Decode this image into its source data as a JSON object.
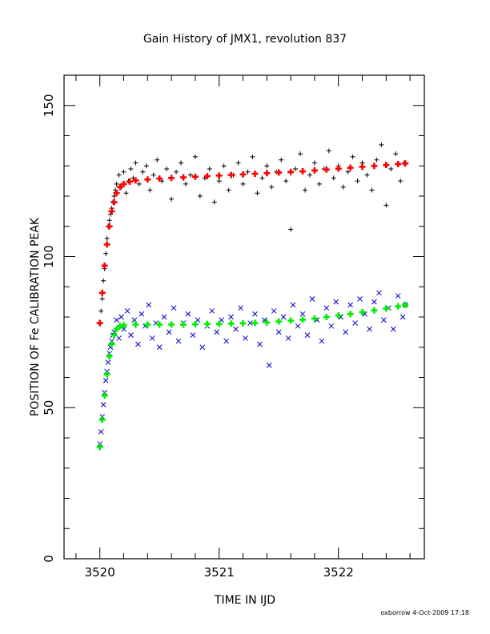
{
  "chart_data": {
    "type": "scatter",
    "title": "Gain History of JMX1, revolution 837",
    "xlabel": "TIME IN IJD",
    "ylabel": "POSITION OF Fe CALIBRATION PEAK",
    "xlim": [
      3519.7,
      3522.72
    ],
    "ylim": [
      0,
      160
    ],
    "x_ticks": [
      3520,
      3521,
      3522
    ],
    "x_tick_labels": [
      "3520",
      "3521",
      "3522"
    ],
    "y_ticks": [
      0,
      50,
      100,
      150
    ],
    "y_tick_labels": [
      "0",
      "50",
      "100",
      "150"
    ],
    "grid": false,
    "series": [
      {
        "marker": "plus",
        "color": "#000000",
        "points": [
          [
            3520.0,
            78
          ],
          [
            3520.01,
            82
          ],
          [
            3520.02,
            86
          ],
          [
            3520.03,
            92
          ],
          [
            3520.04,
            96
          ],
          [
            3520.05,
            101
          ],
          [
            3520.06,
            106
          ],
          [
            3520.07,
            110
          ],
          [
            3520.08,
            112
          ],
          [
            3520.09,
            114
          ],
          [
            3520.1,
            116
          ],
          [
            3520.11,
            118
          ],
          [
            3520.12,
            120
          ],
          [
            3520.13,
            122
          ],
          [
            3520.14,
            124
          ],
          [
            3520.16,
            127
          ],
          [
            3520.18,
            123
          ],
          [
            3520.2,
            128
          ],
          [
            3520.22,
            121
          ],
          [
            3520.24,
            125
          ],
          [
            3520.26,
            129
          ],
          [
            3520.28,
            126
          ],
          [
            3520.3,
            131
          ],
          [
            3520.33,
            124
          ],
          [
            3520.36,
            128
          ],
          [
            3520.39,
            130
          ],
          [
            3520.42,
            122
          ],
          [
            3520.45,
            127
          ],
          [
            3520.48,
            132
          ],
          [
            3520.52,
            125
          ],
          [
            3520.56,
            129
          ],
          [
            3520.6,
            119
          ],
          [
            3520.64,
            128
          ],
          [
            3520.68,
            131
          ],
          [
            3520.72,
            124
          ],
          [
            3520.76,
            127
          ],
          [
            3520.8,
            133
          ],
          [
            3520.84,
            120
          ],
          [
            3520.88,
            126
          ],
          [
            3520.92,
            129
          ],
          [
            3520.96,
            118
          ],
          [
            3521.0,
            125
          ],
          [
            3521.04,
            130
          ],
          [
            3521.08,
            122
          ],
          [
            3521.12,
            127
          ],
          [
            3521.16,
            131
          ],
          [
            3521.2,
            124
          ],
          [
            3521.24,
            128
          ],
          [
            3521.28,
            133
          ],
          [
            3521.32,
            121
          ],
          [
            3521.36,
            126
          ],
          [
            3521.4,
            130
          ],
          [
            3521.44,
            123
          ],
          [
            3521.48,
            128
          ],
          [
            3521.52,
            132
          ],
          [
            3521.56,
            125
          ],
          [
            3521.6,
            109
          ],
          [
            3521.64,
            129
          ],
          [
            3521.68,
            134
          ],
          [
            3521.72,
            122
          ],
          [
            3521.76,
            127
          ],
          [
            3521.8,
            131
          ],
          [
            3521.84,
            124
          ],
          [
            3521.88,
            129
          ],
          [
            3521.92,
            135
          ],
          [
            3521.96,
            126
          ],
          [
            3522.0,
            130
          ],
          [
            3522.04,
            123
          ],
          [
            3522.08,
            128
          ],
          [
            3522.12,
            133
          ],
          [
            3522.16,
            125
          ],
          [
            3522.2,
            131
          ],
          [
            3522.24,
            127
          ],
          [
            3522.28,
            122
          ],
          [
            3522.32,
            132
          ],
          [
            3522.36,
            137
          ],
          [
            3522.4,
            117
          ],
          [
            3522.44,
            129
          ],
          [
            3522.48,
            134
          ],
          [
            3522.52,
            125
          ],
          [
            3522.55,
            131
          ]
        ]
      },
      {
        "marker": "cross",
        "color": "#0000cc",
        "points": [
          [
            3520.0,
            38
          ],
          [
            3520.01,
            42
          ],
          [
            3520.02,
            47
          ],
          [
            3520.03,
            51
          ],
          [
            3520.04,
            55
          ],
          [
            3520.05,
            59
          ],
          [
            3520.06,
            62
          ],
          [
            3520.07,
            65
          ],
          [
            3520.08,
            68
          ],
          [
            3520.09,
            70
          ],
          [
            3520.1,
            72
          ],
          [
            3520.11,
            74
          ],
          [
            3520.12,
            75
          ],
          [
            3520.14,
            79
          ],
          [
            3520.16,
            73
          ],
          [
            3520.18,
            80
          ],
          [
            3520.2,
            76
          ],
          [
            3520.23,
            82
          ],
          [
            3520.26,
            74
          ],
          [
            3520.29,
            79
          ],
          [
            3520.32,
            71
          ],
          [
            3520.35,
            81
          ],
          [
            3520.38,
            77
          ],
          [
            3520.41,
            84
          ],
          [
            3520.44,
            73
          ],
          [
            3520.47,
            78
          ],
          [
            3520.5,
            70
          ],
          [
            3520.54,
            80
          ],
          [
            3520.58,
            75
          ],
          [
            3520.62,
            83
          ],
          [
            3520.66,
            72
          ],
          [
            3520.7,
            78
          ],
          [
            3520.74,
            81
          ],
          [
            3520.78,
            74
          ],
          [
            3520.82,
            79
          ],
          [
            3520.86,
            70
          ],
          [
            3520.9,
            77
          ],
          [
            3520.94,
            82
          ],
          [
            3520.98,
            75
          ],
          [
            3521.02,
            79
          ],
          [
            3521.06,
            72
          ],
          [
            3521.1,
            80
          ],
          [
            3521.14,
            76
          ],
          [
            3521.18,
            83
          ],
          [
            3521.22,
            73
          ],
          [
            3521.26,
            78
          ],
          [
            3521.3,
            81
          ],
          [
            3521.34,
            71
          ],
          [
            3521.38,
            79
          ],
          [
            3521.42,
            64
          ],
          [
            3521.46,
            82
          ],
          [
            3521.5,
            75
          ],
          [
            3521.54,
            80
          ],
          [
            3521.58,
            73
          ],
          [
            3521.62,
            84
          ],
          [
            3521.66,
            77
          ],
          [
            3521.7,
            81
          ],
          [
            3521.74,
            74
          ],
          [
            3521.78,
            86
          ],
          [
            3521.82,
            79
          ],
          [
            3521.86,
            72
          ],
          [
            3521.9,
            83
          ],
          [
            3521.94,
            77
          ],
          [
            3521.98,
            85
          ],
          [
            3522.02,
            80
          ],
          [
            3522.06,
            75
          ],
          [
            3522.1,
            84
          ],
          [
            3522.14,
            78
          ],
          [
            3522.18,
            86
          ],
          [
            3522.22,
            81
          ],
          [
            3522.26,
            76
          ],
          [
            3522.3,
            85
          ],
          [
            3522.34,
            88
          ],
          [
            3522.38,
            79
          ],
          [
            3522.42,
            83
          ],
          [
            3522.46,
            76
          ],
          [
            3522.5,
            87
          ],
          [
            3522.54,
            80
          ],
          [
            3522.56,
            84
          ]
        ]
      },
      {
        "marker": "plus",
        "color": "#ff0000",
        "points": [
          [
            3520.0,
            78
          ],
          [
            3520.02,
            88
          ],
          [
            3520.04,
            97
          ],
          [
            3520.06,
            104
          ],
          [
            3520.08,
            110
          ],
          [
            3520.1,
            115
          ],
          [
            3520.12,
            118
          ],
          [
            3520.14,
            121
          ],
          [
            3520.17,
            123
          ],
          [
            3520.2,
            124
          ],
          [
            3520.25,
            124.8
          ],
          [
            3520.3,
            125.2
          ],
          [
            3520.4,
            125.5
          ],
          [
            3520.5,
            125.8
          ],
          [
            3520.6,
            126.0
          ],
          [
            3520.7,
            126.2
          ],
          [
            3520.8,
            126.4
          ],
          [
            3520.9,
            126.6
          ],
          [
            3521.0,
            126.8
          ],
          [
            3521.1,
            127.0
          ],
          [
            3521.2,
            127.2
          ],
          [
            3521.3,
            127.4
          ],
          [
            3521.4,
            127.6
          ],
          [
            3521.5,
            127.8
          ],
          [
            3521.6,
            128.0
          ],
          [
            3521.7,
            128.2
          ],
          [
            3521.8,
            128.5
          ],
          [
            3521.9,
            128.8
          ],
          [
            3522.0,
            129.1
          ],
          [
            3522.1,
            129.4
          ],
          [
            3522.2,
            129.7
          ],
          [
            3522.3,
            130.0
          ],
          [
            3522.4,
            130.3
          ],
          [
            3522.5,
            130.6
          ],
          [
            3522.56,
            130.8
          ]
        ]
      },
      {
        "marker": "plus",
        "color": "#00ee00",
        "points": [
          [
            3520.0,
            37
          ],
          [
            3520.02,
            46
          ],
          [
            3520.04,
            54
          ],
          [
            3520.06,
            61
          ],
          [
            3520.08,
            67
          ],
          [
            3520.1,
            71
          ],
          [
            3520.12,
            74
          ],
          [
            3520.14,
            76
          ],
          [
            3520.17,
            77
          ],
          [
            3520.2,
            77.3
          ],
          [
            3520.3,
            77.5
          ],
          [
            3520.4,
            77.5
          ],
          [
            3520.5,
            77.5
          ],
          [
            3520.6,
            77.5
          ],
          [
            3520.7,
            77.5
          ],
          [
            3520.8,
            77.6
          ],
          [
            3520.9,
            77.7
          ],
          [
            3521.0,
            77.7
          ],
          [
            3521.1,
            77.8
          ],
          [
            3521.2,
            77.9
          ],
          [
            3521.3,
            78.0
          ],
          [
            3521.4,
            78.2
          ],
          [
            3521.5,
            78.5
          ],
          [
            3521.6,
            78.8
          ],
          [
            3521.7,
            79.1
          ],
          [
            3521.8,
            79.5
          ],
          [
            3521.9,
            80.0
          ],
          [
            3522.0,
            80.5
          ],
          [
            3522.1,
            81.0
          ],
          [
            3522.2,
            81.6
          ],
          [
            3522.3,
            82.2
          ],
          [
            3522.4,
            82.8
          ],
          [
            3522.5,
            83.5
          ],
          [
            3522.56,
            84.0
          ]
        ]
      }
    ]
  },
  "footer": {
    "credit": "oxborrow  4-Oct-2009 17:18"
  }
}
